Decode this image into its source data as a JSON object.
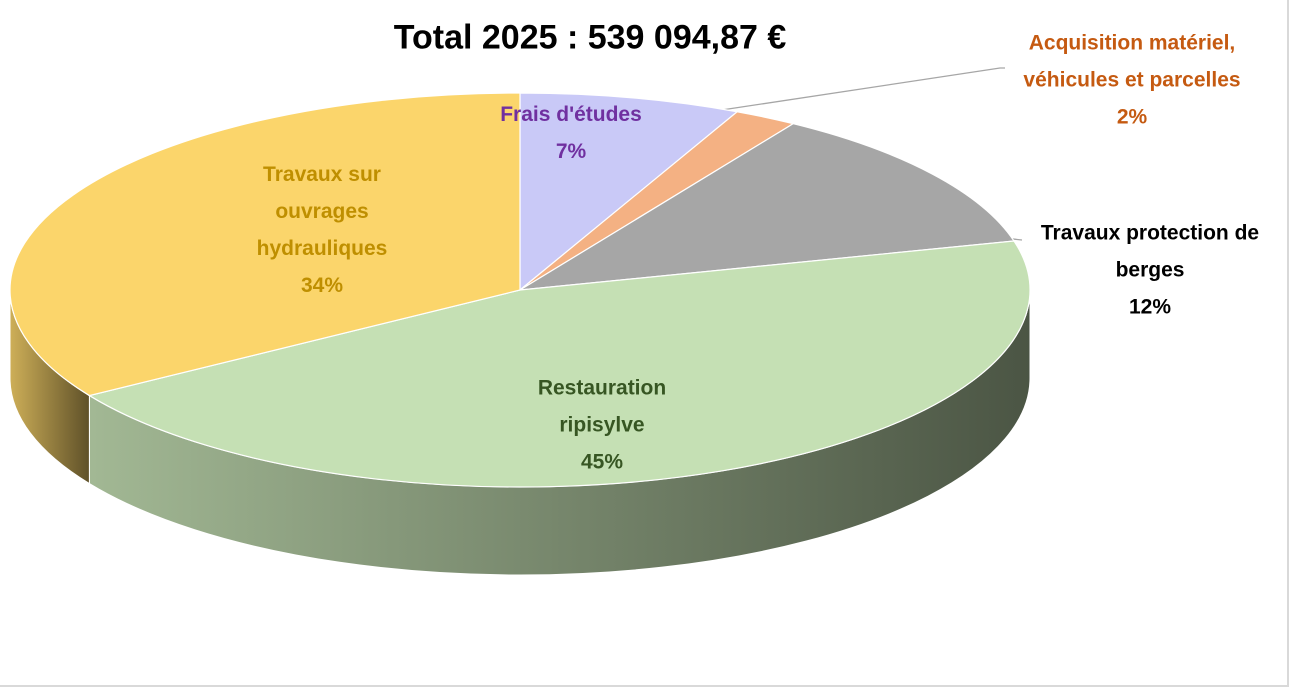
{
  "chart_data": {
    "type": "pie3d",
    "title": "Total 2025 : 539 094,87 €",
    "categories": [
      "Frais d'études",
      "Acquisition matériel, véhicules et parcelles",
      "Travaux protection de berges",
      "Restauration ripisylve",
      "Travaux sur ouvrages hydrauliques"
    ],
    "values": [
      7,
      2,
      12,
      45,
      34
    ],
    "value_labels": [
      "7%",
      "2%",
      "12%",
      "45%",
      "34%"
    ],
    "colors": [
      "#c9c9f7",
      "#f4b183",
      "#a6a6a6",
      "#c5e0b4",
      "#fbd56b"
    ],
    "label_colors": [
      "#7030a0",
      "#c55a11",
      "#000000",
      "#375623",
      "#bf8f00"
    ]
  }
}
